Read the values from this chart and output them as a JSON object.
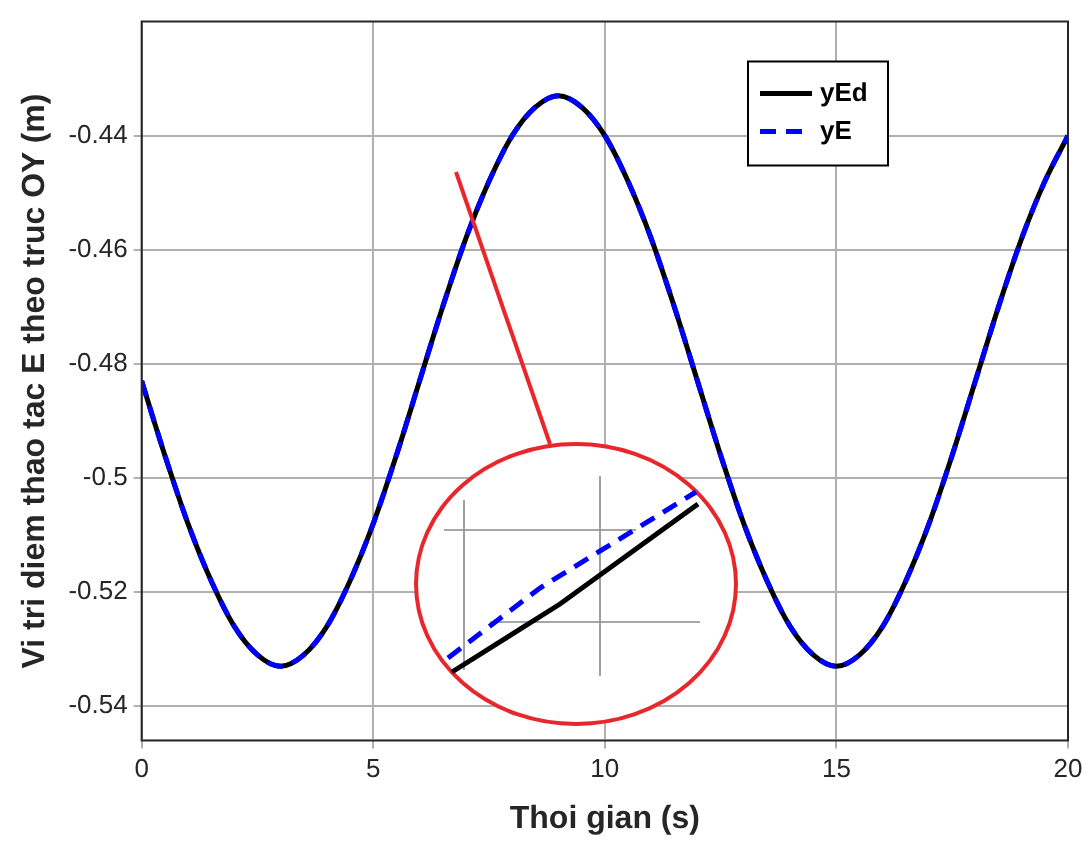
{
  "chart_data": {
    "type": "line",
    "xlabel": "Thoi gian (s)",
    "ylabel": "Vi tri diem thao tac E theo truc OY (m)",
    "x": [
      0,
      0.5,
      1,
      1.5,
      2,
      2.5,
      3,
      3.5,
      4,
      4.5,
      5,
      5.5,
      6,
      6.5,
      7,
      7.5,
      8,
      8.5,
      9,
      9.5,
      10,
      10.5,
      11,
      11.5,
      12,
      12.5,
      13,
      13.5,
      14,
      14.5,
      15,
      15.5,
      16,
      16.5,
      17,
      17.5,
      18,
      18.5,
      19,
      19.5,
      20
    ],
    "series": [
      {
        "name": "yEd",
        "color": "#000000",
        "line_style": "solid",
        "values": [
          -0.483,
          -0.496,
          -0.508,
          -0.518,
          -0.526,
          -0.531,
          -0.533,
          -0.531,
          -0.526,
          -0.518,
          -0.508,
          -0.496,
          -0.483,
          -0.47,
          -0.458,
          -0.448,
          -0.44,
          -0.435,
          -0.433,
          -0.435,
          -0.44,
          -0.448,
          -0.458,
          -0.47,
          -0.483,
          -0.496,
          -0.508,
          -0.518,
          -0.526,
          -0.531,
          -0.533,
          -0.531,
          -0.526,
          -0.518,
          -0.508,
          -0.496,
          -0.483,
          -0.47,
          -0.458,
          -0.448,
          -0.44
        ]
      },
      {
        "name": "yE",
        "color": "#0000ff",
        "line_style": "dashed",
        "values": [
          -0.483,
          -0.496,
          -0.508,
          -0.518,
          -0.526,
          -0.531,
          -0.533,
          -0.531,
          -0.526,
          -0.518,
          -0.508,
          -0.496,
          -0.483,
          -0.47,
          -0.458,
          -0.448,
          -0.44,
          -0.435,
          -0.433,
          -0.435,
          -0.44,
          -0.448,
          -0.458,
          -0.47,
          -0.483,
          -0.496,
          -0.508,
          -0.518,
          -0.526,
          -0.531,
          -0.533,
          -0.531,
          -0.526,
          -0.518,
          -0.508,
          -0.496,
          -0.483,
          -0.47,
          -0.458,
          -0.448,
          -0.44
        ]
      }
    ],
    "xlim": [
      0,
      20
    ],
    "xticks": [
      0,
      5,
      10,
      15,
      20
    ],
    "ylim": [
      -0.546,
      -0.42
    ],
    "yticks": [
      -0.54,
      -0.52,
      {
        "value": -0.5,
        "label": "-0.5"
      },
      -0.48,
      -0.46,
      -0.44
    ],
    "grid": true,
    "legend": "top right",
    "marker": "none"
  }
}
